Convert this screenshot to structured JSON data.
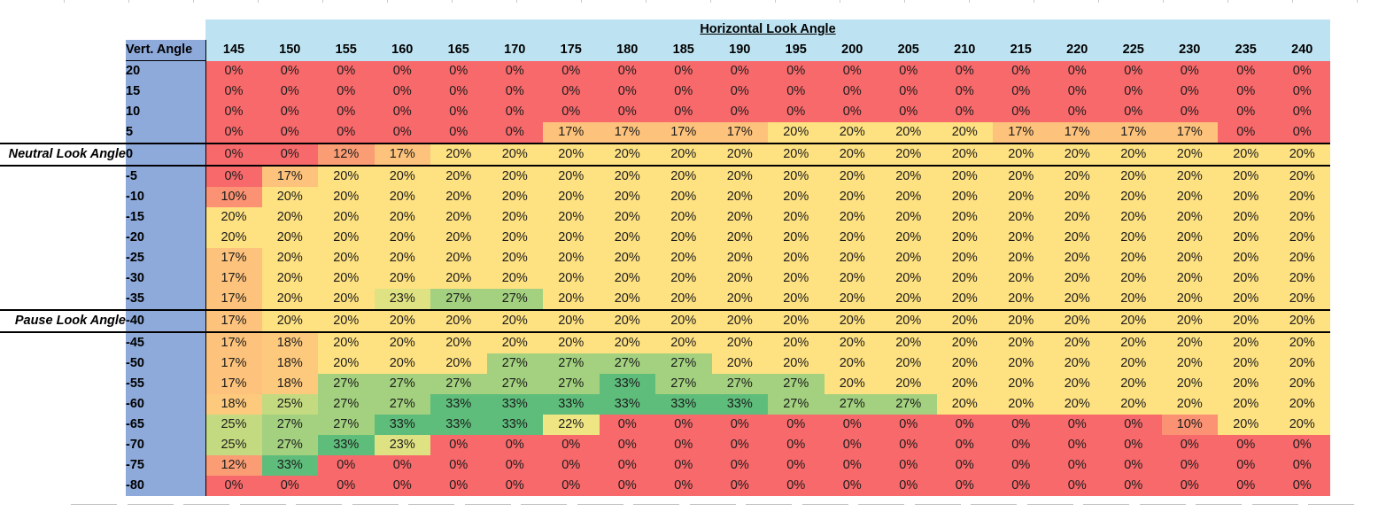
{
  "header": {
    "title": "Horizontal Look Angle",
    "corner_label": "Vert. Angle",
    "columns": [
      "145",
      "150",
      "155",
      "160",
      "165",
      "170",
      "175",
      "180",
      "185",
      "190",
      "195",
      "200",
      "205",
      "210",
      "215",
      "220",
      "225",
      "230",
      "235",
      "240"
    ]
  },
  "side_labels": {
    "neutral": "Neutral Look Angle",
    "pause": "Pause Look Angle"
  },
  "colors": {
    "header_light_blue": "#BDE3F2",
    "row_header_blue": "#8EAADB",
    "value_colors": {
      "0": "#F8696B",
      "10": "#FA9273",
      "12": "#FB9D74",
      "17": "#FDC27B",
      "18": "#FDC97D",
      "20": "#FEE181",
      "22": "#EFE683",
      "23": "#DFE283",
      "25": "#C4DA80",
      "27": "#A3D17F",
      "33": "#5EBD7B"
    }
  },
  "rows": [
    {
      "angle": "20",
      "side": "",
      "thick": false,
      "values": [
        0,
        0,
        0,
        0,
        0,
        0,
        0,
        0,
        0,
        0,
        0,
        0,
        0,
        0,
        0,
        0,
        0,
        0,
        0,
        0
      ]
    },
    {
      "angle": "15",
      "side": "",
      "thick": false,
      "values": [
        0,
        0,
        0,
        0,
        0,
        0,
        0,
        0,
        0,
        0,
        0,
        0,
        0,
        0,
        0,
        0,
        0,
        0,
        0,
        0
      ]
    },
    {
      "angle": "10",
      "side": "",
      "thick": false,
      "values": [
        0,
        0,
        0,
        0,
        0,
        0,
        0,
        0,
        0,
        0,
        0,
        0,
        0,
        0,
        0,
        0,
        0,
        0,
        0,
        0
      ]
    },
    {
      "angle": "5",
      "side": "",
      "thick": false,
      "values": [
        0,
        0,
        0,
        0,
        0,
        0,
        17,
        17,
        17,
        17,
        20,
        20,
        20,
        20,
        17,
        17,
        17,
        17,
        0,
        0
      ]
    },
    {
      "angle": "0",
      "side": "neutral",
      "thick": true,
      "values": [
        0,
        0,
        12,
        17,
        20,
        20,
        20,
        20,
        20,
        20,
        20,
        20,
        20,
        20,
        20,
        20,
        20,
        20,
        20,
        20
      ]
    },
    {
      "angle": "-5",
      "side": "",
      "thick": false,
      "values": [
        0,
        17,
        20,
        20,
        20,
        20,
        20,
        20,
        20,
        20,
        20,
        20,
        20,
        20,
        20,
        20,
        20,
        20,
        20,
        20
      ]
    },
    {
      "angle": "-10",
      "side": "",
      "thick": false,
      "values": [
        10,
        20,
        20,
        20,
        20,
        20,
        20,
        20,
        20,
        20,
        20,
        20,
        20,
        20,
        20,
        20,
        20,
        20,
        20,
        20
      ]
    },
    {
      "angle": "-15",
      "side": "",
      "thick": false,
      "values": [
        20,
        20,
        20,
        20,
        20,
        20,
        20,
        20,
        20,
        20,
        20,
        20,
        20,
        20,
        20,
        20,
        20,
        20,
        20,
        20
      ]
    },
    {
      "angle": "-20",
      "side": "",
      "thick": false,
      "values": [
        20,
        20,
        20,
        20,
        20,
        20,
        20,
        20,
        20,
        20,
        20,
        20,
        20,
        20,
        20,
        20,
        20,
        20,
        20,
        20
      ]
    },
    {
      "angle": "-25",
      "side": "",
      "thick": false,
      "values": [
        17,
        20,
        20,
        20,
        20,
        20,
        20,
        20,
        20,
        20,
        20,
        20,
        20,
        20,
        20,
        20,
        20,
        20,
        20,
        20
      ]
    },
    {
      "angle": "-30",
      "side": "",
      "thick": false,
      "values": [
        17,
        20,
        20,
        20,
        20,
        20,
        20,
        20,
        20,
        20,
        20,
        20,
        20,
        20,
        20,
        20,
        20,
        20,
        20,
        20
      ]
    },
    {
      "angle": "-35",
      "side": "",
      "thick": false,
      "values": [
        17,
        20,
        20,
        23,
        27,
        27,
        20,
        20,
        20,
        20,
        20,
        20,
        20,
        20,
        20,
        20,
        20,
        20,
        20,
        20
      ]
    },
    {
      "angle": "-40",
      "side": "pause",
      "thick": true,
      "values": [
        17,
        20,
        20,
        20,
        20,
        20,
        20,
        20,
        20,
        20,
        20,
        20,
        20,
        20,
        20,
        20,
        20,
        20,
        20,
        20
      ]
    },
    {
      "angle": "-45",
      "side": "",
      "thick": false,
      "values": [
        17,
        18,
        20,
        20,
        20,
        20,
        20,
        20,
        20,
        20,
        20,
        20,
        20,
        20,
        20,
        20,
        20,
        20,
        20,
        20
      ]
    },
    {
      "angle": "-50",
      "side": "",
      "thick": false,
      "values": [
        17,
        18,
        20,
        20,
        20,
        27,
        27,
        27,
        27,
        20,
        20,
        20,
        20,
        20,
        20,
        20,
        20,
        20,
        20,
        20
      ]
    },
    {
      "angle": "-55",
      "side": "",
      "thick": false,
      "values": [
        17,
        18,
        27,
        27,
        27,
        27,
        27,
        33,
        27,
        27,
        27,
        20,
        20,
        20,
        20,
        20,
        20,
        20,
        20,
        20
      ]
    },
    {
      "angle": "-60",
      "side": "",
      "thick": false,
      "values": [
        18,
        25,
        27,
        27,
        33,
        33,
        33,
        33,
        33,
        33,
        27,
        27,
        27,
        20,
        20,
        20,
        20,
        20,
        20,
        20
      ]
    },
    {
      "angle": "-65",
      "side": "",
      "thick": false,
      "values": [
        25,
        27,
        27,
        33,
        33,
        33,
        22,
        0,
        0,
        0,
        0,
        0,
        0,
        0,
        0,
        0,
        0,
        10,
        20,
        20
      ]
    },
    {
      "angle": "-70",
      "side": "",
      "thick": false,
      "values": [
        25,
        27,
        33,
        23,
        0,
        0,
        0,
        0,
        0,
        0,
        0,
        0,
        0,
        0,
        0,
        0,
        0,
        0,
        0,
        0
      ]
    },
    {
      "angle": "-75",
      "side": "",
      "thick": false,
      "values": [
        12,
        33,
        0,
        0,
        0,
        0,
        0,
        0,
        0,
        0,
        0,
        0,
        0,
        0,
        0,
        0,
        0,
        0,
        0,
        0
      ]
    },
    {
      "angle": "-80",
      "side": "",
      "thick": false,
      "values": [
        0,
        0,
        0,
        0,
        0,
        0,
        0,
        0,
        0,
        0,
        0,
        0,
        0,
        0,
        0,
        0,
        0,
        0,
        0,
        0
      ]
    }
  ],
  "chart_data": {
    "type": "heatmap",
    "title": "Horizontal Look Angle",
    "xlabel": "Horizontal Look Angle",
    "ylabel": "Vert. Angle",
    "x": [
      145,
      150,
      155,
      160,
      165,
      170,
      175,
      180,
      185,
      190,
      195,
      200,
      205,
      210,
      215,
      220,
      225,
      230,
      235,
      240
    ],
    "y": [
      20,
      15,
      10,
      5,
      0,
      -5,
      -10,
      -15,
      -20,
      -25,
      -30,
      -35,
      -40,
      -45,
      -50,
      -55,
      -60,
      -65,
      -70,
      -75,
      -80
    ],
    "value_format": "percent",
    "values": [
      [
        0,
        0,
        0,
        0,
        0,
        0,
        0,
        0,
        0,
        0,
        0,
        0,
        0,
        0,
        0,
        0,
        0,
        0,
        0,
        0
      ],
      [
        0,
        0,
        0,
        0,
        0,
        0,
        0,
        0,
        0,
        0,
        0,
        0,
        0,
        0,
        0,
        0,
        0,
        0,
        0,
        0
      ],
      [
        0,
        0,
        0,
        0,
        0,
        0,
        0,
        0,
        0,
        0,
        0,
        0,
        0,
        0,
        0,
        0,
        0,
        0,
        0,
        0
      ],
      [
        0,
        0,
        0,
        0,
        0,
        0,
        17,
        17,
        17,
        17,
        20,
        20,
        20,
        20,
        17,
        17,
        17,
        17,
        0,
        0
      ],
      [
        0,
        0,
        12,
        17,
        20,
        20,
        20,
        20,
        20,
        20,
        20,
        20,
        20,
        20,
        20,
        20,
        20,
        20,
        20,
        20
      ],
      [
        0,
        17,
        20,
        20,
        20,
        20,
        20,
        20,
        20,
        20,
        20,
        20,
        20,
        20,
        20,
        20,
        20,
        20,
        20,
        20
      ],
      [
        10,
        20,
        20,
        20,
        20,
        20,
        20,
        20,
        20,
        20,
        20,
        20,
        20,
        20,
        20,
        20,
        20,
        20,
        20,
        20
      ],
      [
        20,
        20,
        20,
        20,
        20,
        20,
        20,
        20,
        20,
        20,
        20,
        20,
        20,
        20,
        20,
        20,
        20,
        20,
        20,
        20
      ],
      [
        20,
        20,
        20,
        20,
        20,
        20,
        20,
        20,
        20,
        20,
        20,
        20,
        20,
        20,
        20,
        20,
        20,
        20,
        20,
        20
      ],
      [
        17,
        20,
        20,
        20,
        20,
        20,
        20,
        20,
        20,
        20,
        20,
        20,
        20,
        20,
        20,
        20,
        20,
        20,
        20,
        20
      ],
      [
        17,
        20,
        20,
        20,
        20,
        20,
        20,
        20,
        20,
        20,
        20,
        20,
        20,
        20,
        20,
        20,
        20,
        20,
        20,
        20
      ],
      [
        17,
        20,
        20,
        23,
        27,
        27,
        20,
        20,
        20,
        20,
        20,
        20,
        20,
        20,
        20,
        20,
        20,
        20,
        20,
        20
      ],
      [
        17,
        20,
        20,
        20,
        20,
        20,
        20,
        20,
        20,
        20,
        20,
        20,
        20,
        20,
        20,
        20,
        20,
        20,
        20,
        20
      ],
      [
        17,
        18,
        20,
        20,
        20,
        20,
        20,
        20,
        20,
        20,
        20,
        20,
        20,
        20,
        20,
        20,
        20,
        20,
        20,
        20
      ],
      [
        17,
        18,
        20,
        20,
        20,
        27,
        27,
        27,
        27,
        20,
        20,
        20,
        20,
        20,
        20,
        20,
        20,
        20,
        20,
        20
      ],
      [
        17,
        18,
        27,
        27,
        27,
        27,
        27,
        33,
        27,
        27,
        27,
        20,
        20,
        20,
        20,
        20,
        20,
        20,
        20,
        20
      ],
      [
        18,
        25,
        27,
        27,
        33,
        33,
        33,
        33,
        33,
        33,
        27,
        27,
        27,
        20,
        20,
        20,
        20,
        20,
        20,
        20
      ],
      [
        25,
        27,
        27,
        33,
        33,
        33,
        22,
        0,
        0,
        0,
        0,
        0,
        0,
        0,
        0,
        0,
        0,
        10,
        20,
        20
      ],
      [
        25,
        27,
        33,
        23,
        0,
        0,
        0,
        0,
        0,
        0,
        0,
        0,
        0,
        0,
        0,
        0,
        0,
        0,
        0,
        0
      ],
      [
        12,
        33,
        0,
        0,
        0,
        0,
        0,
        0,
        0,
        0,
        0,
        0,
        0,
        0,
        0,
        0,
        0,
        0,
        0,
        0
      ],
      [
        0,
        0,
        0,
        0,
        0,
        0,
        0,
        0,
        0,
        0,
        0,
        0,
        0,
        0,
        0,
        0,
        0,
        0,
        0,
        0
      ]
    ],
    "annotations": [
      {
        "text": "Neutral Look Angle",
        "y": 0
      },
      {
        "text": "Pause Look Angle",
        "y": -40
      }
    ],
    "color_scale": {
      "min_color": "#F8696B",
      "mid_color": "#FFE182",
      "max_color": "#5EBD7B",
      "min": 0,
      "max": 33
    },
    "legend": "none",
    "grid": false
  }
}
